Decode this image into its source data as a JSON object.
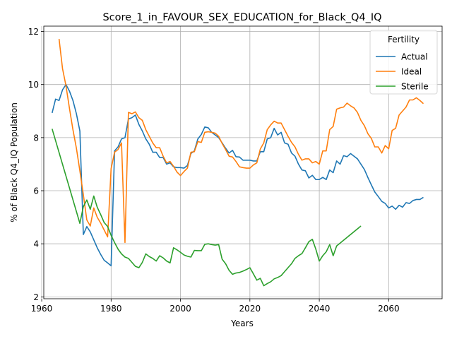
{
  "chart_data": {
    "type": "line",
    "title": "Score_1_in_FAVOUR_SEX_EDUCATION_for_Black_Q4_IQ",
    "xlabel": "Years",
    "ylabel": "% of Black Q4_IQ Population",
    "xlim": [
      1960.6,
      2075.4
    ],
    "ylim": [
      1.93,
      12.2
    ],
    "x_ticks": [
      1960,
      1980,
      2000,
      2020,
      2040,
      2060
    ],
    "y_ticks": [
      2,
      4,
      6,
      8,
      10,
      12
    ],
    "grid": true,
    "legend": {
      "title": "Fertility",
      "position": "top-right"
    },
    "series": [
      {
        "name": "Actual",
        "color": "#1f77b4",
        "points": [
          [
            1963,
            8.93
          ],
          [
            1964,
            9.45
          ],
          [
            1965,
            9.4
          ],
          [
            1966,
            9.8
          ],
          [
            1967,
            10.0
          ],
          [
            1968,
            9.75
          ],
          [
            1969,
            9.4
          ],
          [
            1970,
            8.9
          ],
          [
            1971,
            8.25
          ],
          [
            1972,
            4.35
          ],
          [
            1973,
            4.65
          ],
          [
            1974,
            4.45
          ],
          [
            1975,
            4.15
          ],
          [
            1976,
            3.85
          ],
          [
            1977,
            3.6
          ],
          [
            1978,
            3.38
          ],
          [
            1979,
            3.28
          ],
          [
            1980,
            3.17
          ],
          [
            1981,
            7.5
          ],
          [
            1982,
            7.65
          ],
          [
            1983,
            7.95
          ],
          [
            1984,
            8.0
          ],
          [
            1985,
            8.7
          ],
          [
            1986,
            8.75
          ],
          [
            1987,
            8.85
          ],
          [
            1988,
            8.5
          ],
          [
            1989,
            8.25
          ],
          [
            1990,
            7.95
          ],
          [
            1991,
            7.75
          ],
          [
            1992,
            7.45
          ],
          [
            1993,
            7.45
          ],
          [
            1994,
            7.25
          ],
          [
            1995,
            7.25
          ],
          [
            1996,
            7.0
          ],
          [
            1997,
            7.05
          ],
          [
            1998,
            6.9
          ],
          [
            1999,
            6.87
          ],
          [
            2000,
            6.87
          ],
          [
            2001,
            6.85
          ],
          [
            2002,
            6.95
          ],
          [
            2003,
            7.4
          ],
          [
            2004,
            7.5
          ],
          [
            2005,
            7.95
          ],
          [
            2006,
            8.12
          ],
          [
            2007,
            8.4
          ],
          [
            2008,
            8.37
          ],
          [
            2009,
            8.2
          ],
          [
            2010,
            8.1
          ],
          [
            2011,
            8.0
          ],
          [
            2012,
            7.8
          ],
          [
            2013,
            7.6
          ],
          [
            2014,
            7.42
          ],
          [
            2015,
            7.52
          ],
          [
            2016,
            7.28
          ],
          [
            2017,
            7.27
          ],
          [
            2018,
            7.15
          ],
          [
            2019,
            7.15
          ],
          [
            2020,
            7.15
          ],
          [
            2021,
            7.12
          ],
          [
            2022,
            7.12
          ],
          [
            2023,
            7.47
          ],
          [
            2024,
            7.47
          ],
          [
            2025,
            7.95
          ],
          [
            2026,
            8.0
          ],
          [
            2027,
            8.35
          ],
          [
            2028,
            8.1
          ],
          [
            2029,
            8.2
          ],
          [
            2030,
            7.8
          ],
          [
            2031,
            7.75
          ],
          [
            2032,
            7.42
          ],
          [
            2033,
            7.3
          ],
          [
            2034,
            7.0
          ],
          [
            2035,
            6.78
          ],
          [
            2036,
            6.75
          ],
          [
            2037,
            6.48
          ],
          [
            2038,
            6.58
          ],
          [
            2039,
            6.42
          ],
          [
            2040,
            6.42
          ],
          [
            2041,
            6.5
          ],
          [
            2042,
            6.42
          ],
          [
            2043,
            6.78
          ],
          [
            2044,
            6.68
          ],
          [
            2045,
            7.12
          ],
          [
            2046,
            7.0
          ],
          [
            2047,
            7.32
          ],
          [
            2048,
            7.28
          ],
          [
            2049,
            7.4
          ],
          [
            2050,
            7.3
          ],
          [
            2051,
            7.2
          ],
          [
            2052,
            7.0
          ],
          [
            2053,
            6.8
          ],
          [
            2054,
            6.5
          ],
          [
            2055,
            6.22
          ],
          [
            2056,
            5.95
          ],
          [
            2057,
            5.78
          ],
          [
            2058,
            5.6
          ],
          [
            2059,
            5.52
          ],
          [
            2060,
            5.35
          ],
          [
            2061,
            5.42
          ],
          [
            2062,
            5.3
          ],
          [
            2063,
            5.45
          ],
          [
            2064,
            5.38
          ],
          [
            2065,
            5.55
          ],
          [
            2066,
            5.52
          ],
          [
            2067,
            5.63
          ],
          [
            2068,
            5.67
          ],
          [
            2069,
            5.67
          ],
          [
            2070,
            5.75
          ]
        ]
      },
      {
        "name": "Ideal",
        "color": "#ff7f0e",
        "points": [
          [
            1965,
            11.72
          ],
          [
            1966,
            10.6
          ],
          [
            1967,
            9.95
          ],
          [
            1968,
            9.1
          ],
          [
            1969,
            8.3
          ],
          [
            1970,
            7.6
          ],
          [
            1971,
            6.75
          ],
          [
            1972,
            5.85
          ],
          [
            1973,
            4.9
          ],
          [
            1974,
            4.67
          ],
          [
            1975,
            5.35
          ],
          [
            1976,
            5.0
          ],
          [
            1977,
            4.78
          ],
          [
            1978,
            4.52
          ],
          [
            1979,
            4.26
          ],
          [
            1980,
            6.83
          ],
          [
            1981,
            7.45
          ],
          [
            1982,
            7.55
          ],
          [
            1983,
            7.8
          ],
          [
            1984,
            4.05
          ],
          [
            1985,
            8.95
          ],
          [
            1986,
            8.9
          ],
          [
            1987,
            8.97
          ],
          [
            1988,
            8.75
          ],
          [
            1989,
            8.65
          ],
          [
            1990,
            8.3
          ],
          [
            1991,
            8.05
          ],
          [
            1992,
            7.8
          ],
          [
            1993,
            7.62
          ],
          [
            1994,
            7.62
          ],
          [
            1995,
            7.3
          ],
          [
            1996,
            7.05
          ],
          [
            1997,
            7.1
          ],
          [
            1998,
            6.92
          ],
          [
            1999,
            6.7
          ],
          [
            2000,
            6.57
          ],
          [
            2001,
            6.72
          ],
          [
            2002,
            6.85
          ],
          [
            2003,
            7.45
          ],
          [
            2004,
            7.47
          ],
          [
            2005,
            7.85
          ],
          [
            2006,
            7.82
          ],
          [
            2007,
            8.2
          ],
          [
            2008,
            8.22
          ],
          [
            2009,
            8.2
          ],
          [
            2010,
            8.17
          ],
          [
            2011,
            8.05
          ],
          [
            2012,
            7.78
          ],
          [
            2013,
            7.55
          ],
          [
            2014,
            7.3
          ],
          [
            2015,
            7.27
          ],
          [
            2016,
            7.1
          ],
          [
            2017,
            6.9
          ],
          [
            2018,
            6.87
          ],
          [
            2019,
            6.85
          ],
          [
            2020,
            6.85
          ],
          [
            2021,
            6.97
          ],
          [
            2022,
            7.05
          ],
          [
            2023,
            7.57
          ],
          [
            2024,
            7.8
          ],
          [
            2025,
            8.3
          ],
          [
            2026,
            8.48
          ],
          [
            2027,
            8.62
          ],
          [
            2028,
            8.55
          ],
          [
            2029,
            8.55
          ],
          [
            2030,
            8.3
          ],
          [
            2031,
            8.05
          ],
          [
            2032,
            7.82
          ],
          [
            2033,
            7.65
          ],
          [
            2034,
            7.37
          ],
          [
            2035,
            7.15
          ],
          [
            2036,
            7.2
          ],
          [
            2037,
            7.2
          ],
          [
            2038,
            7.05
          ],
          [
            2039,
            7.1
          ],
          [
            2040,
            7.0
          ],
          [
            2041,
            7.5
          ],
          [
            2042,
            7.5
          ],
          [
            2043,
            8.3
          ],
          [
            2044,
            8.42
          ],
          [
            2045,
            9.07
          ],
          [
            2046,
            9.12
          ],
          [
            2047,
            9.15
          ],
          [
            2048,
            9.3
          ],
          [
            2049,
            9.2
          ],
          [
            2050,
            9.12
          ],
          [
            2051,
            8.95
          ],
          [
            2052,
            8.65
          ],
          [
            2053,
            8.45
          ],
          [
            2054,
            8.15
          ],
          [
            2055,
            7.97
          ],
          [
            2056,
            7.65
          ],
          [
            2057,
            7.65
          ],
          [
            2058,
            7.42
          ],
          [
            2059,
            7.7
          ],
          [
            2060,
            7.58
          ],
          [
            2061,
            8.27
          ],
          [
            2062,
            8.35
          ],
          [
            2063,
            8.85
          ],
          [
            2064,
            9.0
          ],
          [
            2065,
            9.15
          ],
          [
            2066,
            9.42
          ],
          [
            2067,
            9.42
          ],
          [
            2068,
            9.5
          ],
          [
            2069,
            9.4
          ],
          [
            2070,
            9.28
          ]
        ]
      },
      {
        "name": "Sterile",
        "color": "#2ca02c",
        "points": [
          [
            1963,
            8.33
          ],
          [
            1971,
            4.77
          ],
          [
            1972,
            5.4
          ],
          [
            1973,
            5.65
          ],
          [
            1974,
            5.3
          ],
          [
            1975,
            5.8
          ],
          [
            1976,
            5.38
          ],
          [
            1977,
            5.1
          ],
          [
            1978,
            4.8
          ],
          [
            1979,
            4.65
          ],
          [
            1980,
            4.32
          ],
          [
            1981,
            4.05
          ],
          [
            1982,
            3.8
          ],
          [
            1983,
            3.62
          ],
          [
            1984,
            3.5
          ],
          [
            1985,
            3.45
          ],
          [
            1986,
            3.3
          ],
          [
            1987,
            3.15
          ],
          [
            1988,
            3.1
          ],
          [
            1989,
            3.3
          ],
          [
            1990,
            3.62
          ],
          [
            1991,
            3.52
          ],
          [
            1992,
            3.45
          ],
          [
            1993,
            3.35
          ],
          [
            1994,
            3.55
          ],
          [
            1995,
            3.47
          ],
          [
            1996,
            3.35
          ],
          [
            1997,
            3.28
          ],
          [
            1998,
            3.85
          ],
          [
            1999,
            3.77
          ],
          [
            2000,
            3.68
          ],
          [
            2001,
            3.58
          ],
          [
            2002,
            3.53
          ],
          [
            2003,
            3.5
          ],
          [
            2004,
            3.75
          ],
          [
            2005,
            3.74
          ],
          [
            2006,
            3.74
          ],
          [
            2007,
            3.98
          ],
          [
            2008,
            4.0
          ],
          [
            2009,
            3.97
          ],
          [
            2010,
            3.95
          ],
          [
            2011,
            3.97
          ],
          [
            2012,
            3.42
          ],
          [
            2013,
            3.25
          ],
          [
            2014,
            3.0
          ],
          [
            2015,
            2.85
          ],
          [
            2016,
            2.9
          ],
          [
            2017,
            2.92
          ],
          [
            2018,
            2.97
          ],
          [
            2019,
            3.03
          ],
          [
            2020,
            3.1
          ],
          [
            2021,
            2.87
          ],
          [
            2022,
            2.63
          ],
          [
            2023,
            2.7
          ],
          [
            2024,
            2.42
          ],
          [
            2025,
            2.5
          ],
          [
            2026,
            2.57
          ],
          [
            2027,
            2.68
          ],
          [
            2028,
            2.73
          ],
          [
            2029,
            2.8
          ],
          [
            2030,
            2.95
          ],
          [
            2031,
            3.1
          ],
          [
            2032,
            3.25
          ],
          [
            2033,
            3.45
          ],
          [
            2034,
            3.55
          ],
          [
            2035,
            3.63
          ],
          [
            2036,
            3.85
          ],
          [
            2037,
            4.08
          ],
          [
            2038,
            4.17
          ],
          [
            2039,
            3.8
          ],
          [
            2040,
            3.35
          ],
          [
            2041,
            3.55
          ],
          [
            2042,
            3.7
          ],
          [
            2043,
            3.97
          ],
          [
            2044,
            3.55
          ],
          [
            2045,
            3.92
          ],
          [
            2052,
            4.67
          ]
        ]
      }
    ]
  }
}
